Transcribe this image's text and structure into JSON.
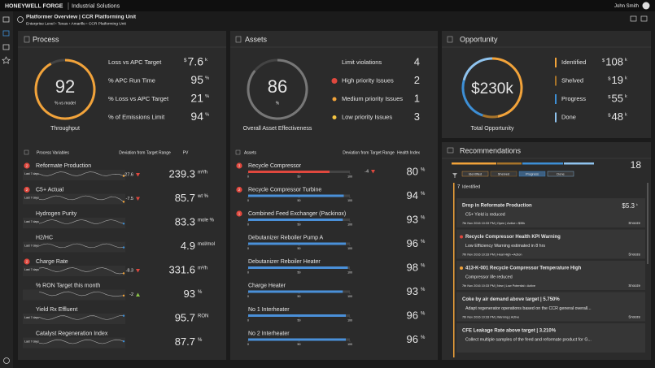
{
  "header": {
    "brand": "HONEYWELL FORGE",
    "product": "Industrial Solutions",
    "user": "John Smith"
  },
  "breadcrumb": {
    "title": "Platformer Overview | CCR Platforming Unit",
    "path": "Enterprise Level › Texas › Amarillo › CCR Platforming Unit"
  },
  "process": {
    "title": "Process",
    "gauge": {
      "value": 92,
      "caption": "% vs model",
      "label": "Throughput",
      "color": "#f2a33a"
    },
    "kpis": [
      {
        "label": "Loss vs APC Target",
        "prefix": "$",
        "value": 7.6,
        "unit": "k"
      },
      {
        "label": "% APC Run Time",
        "value": 95,
        "unit": "%"
      },
      {
        "label": "% Loss vs APC Target",
        "value": 21,
        "unit": "%"
      },
      {
        "label": "% of Emissions Limit",
        "value": 94,
        "unit": "%"
      }
    ],
    "columns": [
      "Process Variables",
      "Deviation from Target Range",
      "PV"
    ],
    "spark_label": "Last 7 days",
    "rows": [
      {
        "name": "Reformate Production",
        "badge": 2,
        "deviation": -27.6,
        "trend": "down",
        "pv": 239.3,
        "unit": "m³/h"
      },
      {
        "name": "C5+ Actual",
        "badge": 2,
        "deviation": -7.5,
        "trend": "down",
        "pv": 85.7,
        "unit": "wt %"
      },
      {
        "name": "Hydrogen Purity",
        "pv": 83.3,
        "unit": "mole %"
      },
      {
        "name": "H2/HC",
        "pv": 4.9,
        "unit": "mol/mol"
      },
      {
        "name": "Charge Rate",
        "badge": 2,
        "deviation": -8.3,
        "trend": "down",
        "pv": 331.6,
        "unit": "m³/h"
      },
      {
        "name": "% RON Target this month",
        "deviation": -2,
        "trend": "up",
        "pv": 93,
        "unit": "%"
      },
      {
        "name": "Yield Rx Effluent",
        "pv": 95.7,
        "unit": "RON"
      },
      {
        "name": "Catalyst Regeneration Index",
        "pv": 87.7,
        "unit": "%"
      }
    ]
  },
  "assets": {
    "title": "Assets",
    "gauge": {
      "value": 86,
      "caption": "%",
      "label": "Overall Asset Effectiveness",
      "color": "#777"
    },
    "issues": [
      {
        "label": "Limit violations",
        "value": 4
      },
      {
        "label": "High priority Issues",
        "value": 2,
        "dot": "#e0483e"
      },
      {
        "label": "Medium priority Issues",
        "value": 1,
        "dot": "#f2a33a"
      },
      {
        "label": "Low priority Issues",
        "value": 3,
        "dot": "#f5c542"
      }
    ],
    "columns": [
      "Assets",
      "Deviation from Target Range",
      "Health Index"
    ],
    "scale": [
      0,
      50,
      100
    ],
    "unit": "%",
    "rows": [
      {
        "name": "Recycle Compressor",
        "badge": 3,
        "deviation": -4,
        "health": 80,
        "color": "#e0483e"
      },
      {
        "name": "Recycle Compressor Turbine",
        "badge": 2,
        "health": 94,
        "color": "#4a90d9"
      },
      {
        "name": "Combined Feed Exchanger (Packinox)",
        "badge": 1,
        "health": 93,
        "color": "#4a90d9"
      },
      {
        "name": "Debutanizer Reboiler Pump A",
        "health": 96,
        "color": "#4a90d9"
      },
      {
        "name": "Debutanizer Reboiler Heater",
        "health": 98,
        "color": "#4a90d9"
      },
      {
        "name": "Charge Heater",
        "health": 93,
        "color": "#4a90d9"
      },
      {
        "name": "No 1 Interheater",
        "health": 96,
        "color": "#4a90d9"
      },
      {
        "name": "No 2 Interheater",
        "health": 96,
        "color": "#4a90d9"
      }
    ]
  },
  "opportunity": {
    "title": "Opportunity",
    "total": "$230k",
    "label": "Total Opportunity",
    "prefix": "$",
    "unit": "k",
    "items": [
      {
        "label": "Identified",
        "value": 108,
        "color": "#f2a33a"
      },
      {
        "label": "Shelved",
        "value": 19,
        "color": "#a8742a"
      },
      {
        "label": "Progress",
        "value": 55,
        "color": "#3d8fd6"
      },
      {
        "label": "Done",
        "value": 48,
        "color": "#8fc3ee"
      }
    ]
  },
  "recommendations": {
    "title": "Recommendations",
    "count": 18,
    "filters": [
      "Identified",
      "Shelved",
      "Progress",
      "Done"
    ],
    "group_count": 7,
    "group_label": "Identified",
    "cards": [
      {
        "title": "Drop in Reformate Production",
        "value": "$5.3",
        "unit": "k",
        "detail": "C5+ Yield is reduced",
        "meta": "7th Nov 2016 10:33 PM | Open | Active • $35k",
        "action": "Snooze"
      },
      {
        "title": "Recycle Compressor Health KPI Warning",
        "dot": "#e0483e",
        "detail": "Low Efficiency Warning estimated in 8 hrs",
        "meta": "7th Nov 2016 10:33 PM | Heal High • Action",
        "action": "Snooze"
      },
      {
        "title": "413-K-001 Recycle Compressor Temperature High",
        "dot": "#f2a33a",
        "detail": "Compressor life reduced",
        "meta": "7th Nov 2016 10:33 PM | New | Low Potential • Active",
        "action": "Snooze"
      },
      {
        "title": "Coke by air demand above target | 5.750%",
        "detail": "Adapt regenerator operations based on the CCR general overall...",
        "meta": "7th Nov 2016 10:33 PM | Warning | Active",
        "action": "Snooze"
      },
      {
        "title": "CFE Leakage Rate above target | 3.210%",
        "detail": "Collect multiple samples of the feed and reformate product for G..."
      }
    ]
  }
}
